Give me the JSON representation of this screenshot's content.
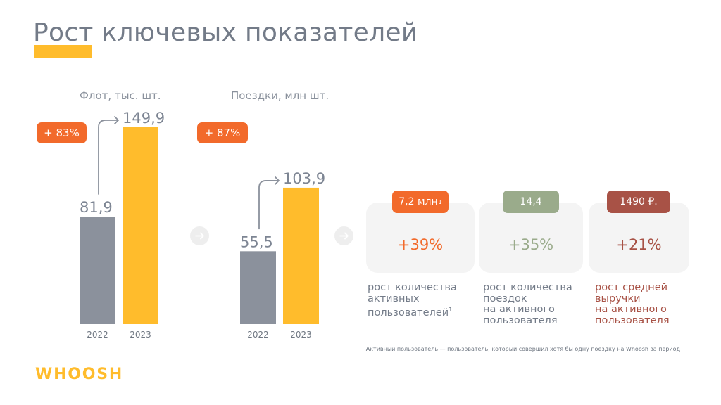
{
  "title": "Рост ключевых показателей",
  "colors": {
    "bar_2022": "#8b919c",
    "bar_2023": "#ffbc2c",
    "accent_orange": "#f26a2b",
    "accent_green": "#9aab8b",
    "accent_red": "#a85246",
    "text_gray": "#737b88",
    "card_bg": "#f4f4f4"
  },
  "chart_data": [
    {
      "type": "bar",
      "title": "Флот, тыс. шт.",
      "categories": [
        "2022",
        "2023"
      ],
      "values": [
        81.9,
        149.9
      ],
      "value_labels": [
        "81,9",
        "149,9"
      ],
      "growth_label": "+ 83%"
    },
    {
      "type": "bar",
      "title": "Поездки, млн шт.",
      "categories": [
        "2022",
        "2023"
      ],
      "values": [
        55.5,
        103.9
      ],
      "value_labels": [
        "55,5",
        "103,9"
      ],
      "growth_label": "+ 87%"
    }
  ],
  "metrics": [
    {
      "chip_value": "7,2 млн",
      "chip_sup": "1",
      "percent": "+39%",
      "description": "рост количества\nактивных\nпользователей",
      "description_sup": "1",
      "color": "#f26a2b"
    },
    {
      "chip_value": "14,4",
      "chip_sup": "",
      "percent": "+35%",
      "description": "рост количества\nпоездок\nна активного\nпользователя",
      "description_sup": "",
      "color": "#9aab8b"
    },
    {
      "chip_value": "1490 ₽.",
      "chip_sup": "",
      "percent": "+21%",
      "description": "рост средней\nвыручки\nна активного\nпользователя",
      "description_sup": "",
      "color": "#a85246"
    }
  ],
  "icons": [
    "arrow-right-icon",
    "curved-arrow-icon"
  ],
  "footnote": "¹ Активный пользователь — пользователь, который совершил хотя бы одну поездку на Whoosh за период",
  "logo": "WHOOSH"
}
